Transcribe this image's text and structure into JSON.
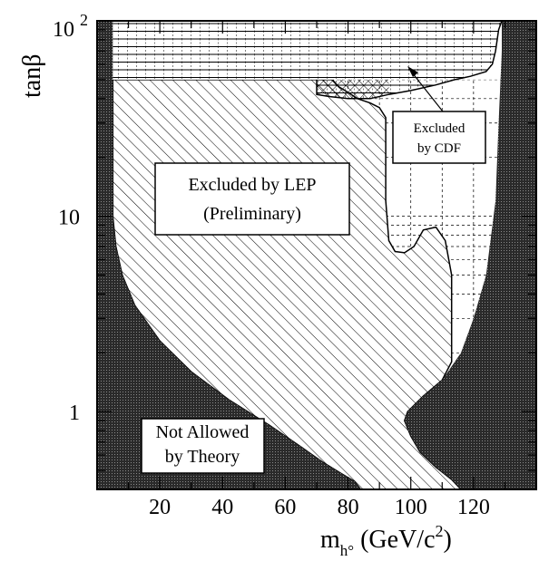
{
  "chart_data": {
    "type": "area",
    "title": "",
    "xlabel": {
      "main": "m",
      "sub": "h°",
      "units_pre": " (GeV/c",
      "units_sup": "2",
      "units_post": ")"
    },
    "ylabel": "tanβ",
    "xlim": [
      0,
      140
    ],
    "ylim": [
      0.4,
      100
    ],
    "y_scale": "log",
    "grid": true,
    "x_ticks": [
      20,
      40,
      60,
      80,
      100,
      120
    ],
    "x_tick_labels": [
      "20",
      "40",
      "60",
      "80",
      "100",
      "120"
    ],
    "y_ticks": [
      1,
      10
    ],
    "y_tick_labels": [
      "1",
      "10"
    ],
    "y_top_label": {
      "base": "10",
      "exp": "2"
    },
    "colors": {
      "theory": "#333333",
      "hatch": "#000000",
      "background": "#ffffff"
    },
    "regions": [
      {
        "name": "not-allowed-left",
        "label_lines": [
          "Not Allowed",
          "by Theory"
        ],
        "style": "dense-dark",
        "boundary": [
          [
            0,
            100
          ],
          [
            5,
            100
          ],
          [
            5,
            50
          ],
          [
            5,
            10
          ],
          [
            6,
            7
          ],
          [
            8,
            5
          ],
          [
            12,
            3.5
          ],
          [
            20,
            2.3
          ],
          [
            30,
            1.6
          ],
          [
            42,
            1.15
          ],
          [
            55,
            0.85
          ],
          [
            65,
            0.66
          ],
          [
            72,
            0.55
          ],
          [
            78,
            0.48
          ],
          [
            82,
            0.44
          ],
          [
            84,
            0.4
          ],
          [
            0,
            0.4
          ]
        ]
      },
      {
        "name": "not-allowed-right",
        "style": "dense-dark",
        "boundary": [
          [
            140,
            100
          ],
          [
            129,
            100
          ],
          [
            129,
            70
          ],
          [
            128,
            30
          ],
          [
            127,
            12
          ],
          [
            124,
            5
          ],
          [
            120,
            3
          ],
          [
            116,
            2
          ],
          [
            110,
            1.45
          ],
          [
            104,
            1.2
          ],
          [
            99,
            1.0
          ],
          [
            98,
            0.9
          ],
          [
            100,
            0.75
          ],
          [
            103,
            0.62
          ],
          [
            108,
            0.52
          ],
          [
            113,
            0.45
          ],
          [
            116,
            0.4
          ],
          [
            140,
            0.4
          ]
        ]
      },
      {
        "name": "excluded-by-lep",
        "label_lines": [
          "Excluded by LEP",
          "(Preliminary)"
        ],
        "style": "diagonal-hatch",
        "boundary": [
          [
            5,
            50
          ],
          [
            5,
            10
          ],
          [
            6,
            7
          ],
          [
            8,
            5
          ],
          [
            12,
            3.5
          ],
          [
            20,
            2.3
          ],
          [
            30,
            1.6
          ],
          [
            42,
            1.15
          ],
          [
            55,
            0.85
          ],
          [
            65,
            0.66
          ],
          [
            72,
            0.55
          ],
          [
            78,
            0.48
          ],
          [
            82,
            0.44
          ],
          [
            84,
            0.4
          ],
          [
            116,
            0.4
          ],
          [
            113,
            0.45
          ],
          [
            108,
            0.52
          ],
          [
            103,
            0.62
          ],
          [
            100,
            0.75
          ],
          [
            98,
            0.9
          ],
          [
            99,
            1.0
          ],
          [
            104,
            1.2
          ],
          [
            110,
            1.45
          ],
          [
            113,
            1.8
          ],
          [
            113,
            3
          ],
          [
            113,
            5
          ],
          [
            111,
            7.5
          ],
          [
            108,
            8.8
          ],
          [
            104,
            8.5
          ],
          [
            101,
            7
          ],
          [
            98,
            6.5
          ],
          [
            95,
            6.6
          ],
          [
            93,
            7.5
          ],
          [
            92,
            12
          ],
          [
            92,
            20
          ],
          [
            92,
            32
          ],
          [
            90,
            36
          ],
          [
            87,
            38
          ],
          [
            83,
            40
          ],
          [
            80,
            43
          ],
          [
            77,
            46
          ],
          [
            75,
            50
          ]
        ]
      },
      {
        "name": "excluded-by-cdf",
        "label_lines": [
          "Excluded",
          "by CDF"
        ],
        "style": "horizontal-lines",
        "boundary": [
          [
            5,
            100
          ],
          [
            129,
            100
          ],
          [
            128,
            90
          ],
          [
            127,
            70
          ],
          [
            126,
            60
          ],
          [
            124,
            55
          ],
          [
            119,
            52
          ],
          [
            114,
            50
          ],
          [
            108,
            47
          ],
          [
            100,
            44
          ],
          [
            93,
            42
          ],
          [
            87,
            40
          ],
          [
            80,
            40
          ],
          [
            74,
            41
          ],
          [
            70,
            42
          ],
          [
            70,
            50
          ],
          [
            5,
            50
          ]
        ]
      }
    ]
  }
}
